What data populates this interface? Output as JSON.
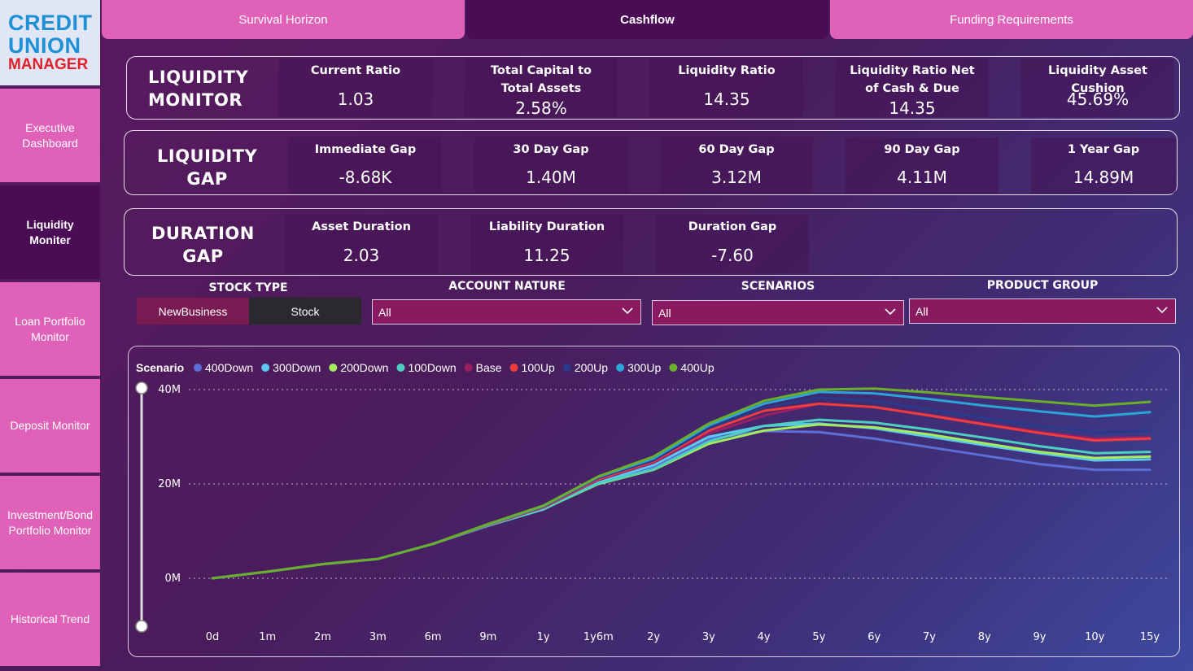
{
  "logo": {
    "line1": "CREDIT",
    "line2": "UNION",
    "line3": "MANAGER"
  },
  "sidebar": {
    "items": [
      {
        "label": "Executive Dashboard",
        "active": false
      },
      {
        "label": "Liquidity Moniter",
        "active": true
      },
      {
        "label": "Loan Portfolio Monitor",
        "active": false
      },
      {
        "label": "Deposit Monitor",
        "active": false
      },
      {
        "label": "Investment/Bond Portfolio Monitor",
        "active": false
      },
      {
        "label": "Historical Trend",
        "active": false
      }
    ]
  },
  "tabs": [
    {
      "label": "Survival Horizon",
      "active": false
    },
    {
      "label": "Cashflow",
      "active": true
    },
    {
      "label": "Funding Requirements",
      "active": false
    }
  ],
  "liquidity_monitor": {
    "title_line1": "LIQUIDITY",
    "title_line2": "MONITOR",
    "kpis": [
      {
        "label": "Current Ratio",
        "value": "1.03"
      },
      {
        "label": "Total Capital to Total Assets",
        "value": "2.58%"
      },
      {
        "label": "Liquidity Ratio",
        "value": "14.35"
      },
      {
        "label": "Liquidity Ratio Net of Cash & Due",
        "value": "14.35"
      },
      {
        "label": "Liquidity Asset Cushion",
        "value": "45.69%"
      }
    ]
  },
  "liquidity_gap": {
    "title_line1": "LIQUIDITY",
    "title_line2": "GAP",
    "kpis": [
      {
        "label": "Immediate Gap",
        "value": "-8.68K"
      },
      {
        "label": "30 Day Gap",
        "value": "1.40M"
      },
      {
        "label": "60 Day Gap",
        "value": "3.12M"
      },
      {
        "label": "90 Day Gap",
        "value": "4.11M"
      },
      {
        "label": "1 Year Gap",
        "value": "14.89M"
      }
    ]
  },
  "duration_gap": {
    "title_line1": "DURATION",
    "title_line2": "GAP",
    "kpis": [
      {
        "label": "Asset Duration",
        "value": "2.03"
      },
      {
        "label": "Liability Duration",
        "value": "11.25"
      },
      {
        "label": "Duration Gap",
        "value": "-7.60"
      }
    ]
  },
  "filters": {
    "stock_type": {
      "label": "STOCK TYPE",
      "options": [
        "NewBusiness",
        "Stock"
      ],
      "selected": "Stock"
    },
    "account_nature": {
      "label": "ACCOUNT NATURE",
      "value": "All"
    },
    "scenarios": {
      "label": "SCENARIOS",
      "value": "All"
    },
    "product_group": {
      "label": "PRODUCT GROUP",
      "value": "All"
    }
  },
  "colors": {
    "accent_pink": "#e061b8",
    "active_purple": "#4b0c56"
  },
  "chart_data": {
    "type": "line",
    "legend_title": "Scenario",
    "legend_position": "top-left",
    "grid": true,
    "x": [
      "0d",
      "1m",
      "2m",
      "3m",
      "6m",
      "9m",
      "1y",
      "1y6m",
      "2y",
      "3y",
      "4y",
      "5y",
      "6y",
      "7y",
      "8y",
      "9y",
      "10y",
      "15y"
    ],
    "yticks": [
      "0M",
      "20M",
      "40M"
    ],
    "ylim": [
      0,
      40
    ],
    "series": [
      {
        "name": "400Down",
        "color": "#5b6fd6",
        "values": [
          0,
          1.4,
          3.0,
          4.1,
          7.3,
          11.1,
          14.6,
          20.1,
          23.6,
          29.6,
          31.2,
          31.0,
          29.6,
          27.8,
          26.0,
          24.2,
          23.0,
          23.0
        ]
      },
      {
        "name": "300Down",
        "color": "#5bc8f0",
        "values": [
          0,
          1.4,
          3.0,
          4.1,
          7.3,
          11.2,
          14.6,
          20.3,
          24.0,
          30.0,
          32.3,
          32.8,
          31.8,
          30.0,
          28.2,
          26.5,
          25.0,
          25.2
        ]
      },
      {
        "name": "200Down",
        "color": "#a4ec5c",
        "values": [
          0,
          1.4,
          3.0,
          4.1,
          7.3,
          11.2,
          14.7,
          20.0,
          23.0,
          28.5,
          31.3,
          32.6,
          32.0,
          30.5,
          28.6,
          26.8,
          25.5,
          25.8
        ]
      },
      {
        "name": "100Down",
        "color": "#4dd0c0",
        "values": [
          0,
          1.4,
          3.0,
          4.1,
          7.3,
          11.2,
          14.7,
          20.1,
          23.1,
          29.0,
          32.3,
          33.6,
          33.0,
          31.5,
          29.8,
          28.0,
          26.5,
          26.8
        ]
      },
      {
        "name": "Base",
        "color": "#9a1f63",
        "values": [
          0,
          1.4,
          3.0,
          4.1,
          7.3,
          11.3,
          15.0,
          20.9,
          24.5,
          30.7,
          34.5,
          37.0,
          36.3,
          34.6,
          32.8,
          31.0,
          29.6,
          29.9
        ]
      },
      {
        "name": "100Up",
        "color": "#f03c3c",
        "values": [
          0,
          1.4,
          3.0,
          4.1,
          7.3,
          11.3,
          15.1,
          21.0,
          24.8,
          31.3,
          35.5,
          37.0,
          36.3,
          34.5,
          32.6,
          30.8,
          29.2,
          29.6
        ]
      },
      {
        "name": "200Up",
        "color": "#2a3a8a",
        "values": [
          0,
          1.4,
          3.0,
          4.1,
          7.3,
          11.4,
          15.2,
          21.3,
          25.0,
          31.8,
          36.2,
          38.3,
          37.6,
          35.8,
          34.0,
          32.3,
          31.0,
          31.2
        ]
      },
      {
        "name": "300Up",
        "color": "#2aa5d6",
        "values": [
          0,
          1.4,
          3.0,
          4.1,
          7.3,
          11.4,
          15.3,
          21.5,
          25.4,
          32.4,
          37.0,
          39.5,
          39.2,
          38.0,
          36.6,
          35.4,
          34.3,
          35.2
        ]
      },
      {
        "name": "400Up",
        "color": "#6aae2a",
        "values": [
          0,
          1.4,
          3.0,
          4.1,
          7.3,
          11.5,
          15.4,
          21.6,
          25.8,
          32.8,
          37.6,
          40.0,
          40.2,
          39.4,
          38.4,
          37.5,
          36.6,
          37.4
        ]
      }
    ]
  }
}
